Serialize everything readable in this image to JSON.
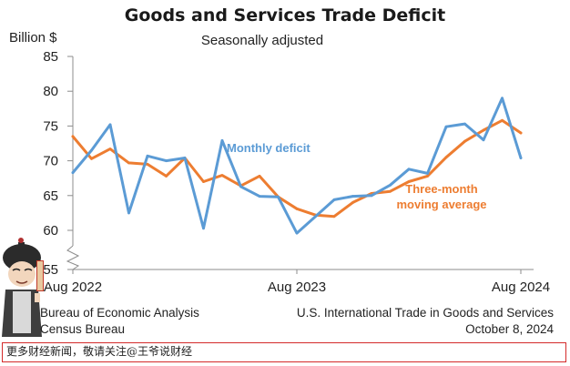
{
  "chart_data": {
    "type": "line",
    "title": "Goods and Services Trade Deficit",
    "subtitle": "Seasonally adjusted",
    "ylabel": "Billion $",
    "xlabel": "",
    "ylim": [
      55,
      85
    ],
    "y_ticks": [
      55,
      60,
      65,
      70,
      75,
      80,
      85
    ],
    "x_tick_labels": [
      {
        "index": 0,
        "label": "Aug 2022"
      },
      {
        "index": 12,
        "label": "Aug 2023"
      },
      {
        "index": 24,
        "label": "Aug 2024"
      }
    ],
    "grid": false,
    "series": [
      {
        "name": "Monthly deficit",
        "color": "#5b9bd5",
        "values": [
          68.3,
          71.5,
          75.2,
          62.5,
          70.7,
          70.0,
          70.4,
          60.3,
          72.9,
          66.3,
          64.9,
          64.8,
          59.6,
          62.0,
          64.4,
          64.9,
          65.0,
          66.5,
          68.8,
          68.2,
          74.9,
          75.3,
          73.0,
          79.0,
          70.4
        ]
      },
      {
        "name": "Three-month moving average",
        "color": "#ed7d31",
        "values": [
          73.5,
          70.3,
          71.7,
          69.7,
          69.5,
          67.8,
          70.4,
          67.0,
          67.9,
          66.4,
          67.8,
          64.8,
          63.1,
          62.2,
          62.0,
          64.0,
          65.3,
          65.6,
          67.0,
          67.8,
          70.5,
          72.8,
          74.4,
          75.8,
          74.0
        ]
      }
    ],
    "annotations": [
      {
        "text": "Monthly deficit",
        "color": "#5b9bd5"
      },
      {
        "text": "Three-month moving average",
        "lines": [
          "Three-month",
          "moving average"
        ],
        "color": "#ed7d31"
      }
    ]
  },
  "footer": {
    "left_line1": "Bureau of Economic Analysis",
    "left_line2": "Census Bureau",
    "right_line1": "U.S. International Trade in Goods and Services",
    "right_line2": "October 8, 2024"
  },
  "banner_text": "更多财经新闻，敬请关注@王爷说财经",
  "colors": {
    "monthly": "#5b9bd5",
    "average": "#ed7d31",
    "axis": "#8c8c8c",
    "text": "#222222",
    "banner_border": "#d42a2a"
  },
  "icons": [
    "mascot-figure",
    "axis-break-icon"
  ]
}
